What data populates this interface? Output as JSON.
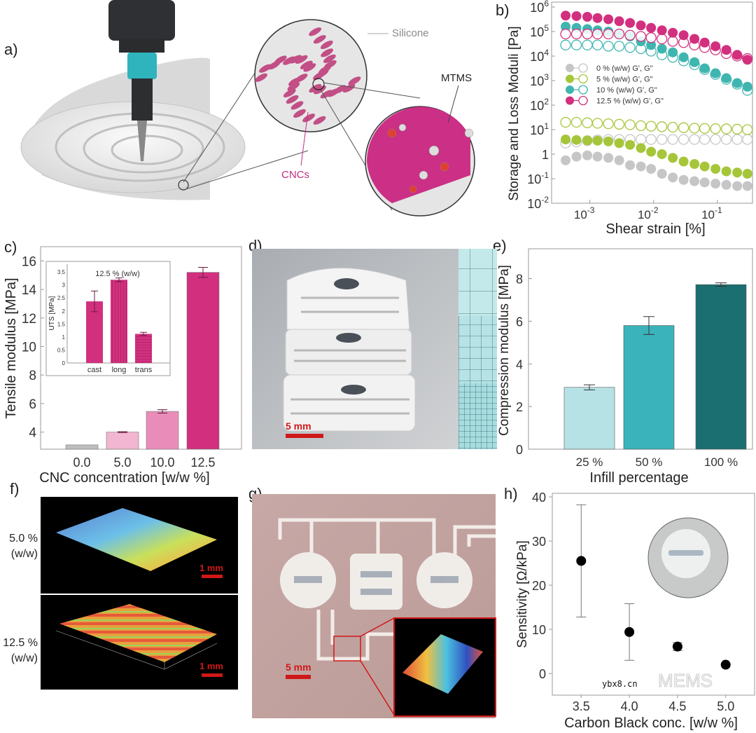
{
  "panel_labels": {
    "a": "a)",
    "b": "b)",
    "c": "c)",
    "d": "d)",
    "e": "e)",
    "f": "f)",
    "g": "g)",
    "h": "h)"
  },
  "panel_a": {
    "silicone": "Silicone",
    "mtms": "MTMS",
    "cncs": "CNCs"
  },
  "panel_d": {
    "scale_bar": "5 mm"
  },
  "panel_f": {
    "top_label_1": "5.0 %",
    "top_label_2": "(w/w)",
    "bottom_label_1": "12.5 %",
    "bottom_label_2": "(w/w)",
    "scale_bar_top": "1 mm",
    "scale_bar_bottom": "1 mm"
  },
  "panel_g": {
    "scale_bar": "5 mm"
  },
  "watermark": {
    "brand": "MEMS",
    "site": "ybx8.cn"
  },
  "colors": {
    "pink": "#d2307f",
    "teal": "#3fb5b0",
    "green": "#a6c63a",
    "gray": "#c6c6c6"
  },
  "chart_data": [
    {
      "id": "b",
      "type": "scatter",
      "y_scale": "log",
      "x_scale": "log",
      "xlabel": "Shear strain [%]",
      "ylabel": "Storage and Loss Moduli [Pa]",
      "x_ticks": [
        {
          "base": "10",
          "exp": "-3",
          "log": -3
        },
        {
          "base": "10",
          "exp": "-2",
          "log": -2
        },
        {
          "base": "10",
          "exp": "-1",
          "log": -1
        }
      ],
      "y_ticks": [
        {
          "base": "10",
          "exp": "6",
          "log": 6
        },
        {
          "base": "10",
          "exp": "5",
          "log": 5
        },
        {
          "base": "10",
          "exp": "4",
          "log": 4
        },
        {
          "base": "10",
          "exp": "3",
          "log": 3
        },
        {
          "base": "10",
          "exp": "2",
          "log": 2
        },
        {
          "base": "10",
          "exp": "1",
          "log": 1
        },
        {
          "base": "1",
          "exp": "",
          "log": 0
        },
        {
          "base": "10",
          "exp": "-1",
          "log": -1
        },
        {
          "base": "10",
          "exp": "-2",
          "log": -2
        }
      ],
      "xlim_log10": [
        -3.6,
        -0.45
      ],
      "ylim_log10": [
        -2,
        6.2
      ],
      "x_log10": [
        -3.38,
        -3.21,
        -3.04,
        -2.88,
        -2.71,
        -2.54,
        -2.37,
        -2.2,
        -2.04,
        -1.87,
        -1.7,
        -1.53,
        -1.36,
        -1.2,
        -1.03,
        -0.86,
        -0.69,
        -0.53
      ],
      "legend_position": "center-left",
      "series": [
        {
          "name": "12.5 % (w/w) G', G\"",
          "color": "#d2307f",
          "G_prime_log10": [
            5.65,
            5.63,
            5.6,
            5.55,
            5.5,
            5.42,
            5.35,
            5.25,
            5.15,
            5.05,
            4.95,
            4.85,
            4.7,
            4.55,
            4.4,
            4.25,
            4.05,
            3.85
          ],
          "G_double_prime_log10": [
            4.9,
            4.9,
            4.9,
            4.9,
            4.9,
            4.9,
            4.85,
            4.8,
            4.75,
            4.7,
            4.6,
            4.55,
            4.45,
            4.35,
            4.25,
            4.1,
            4.0,
            3.9
          ]
        },
        {
          "name": "10 % (w/w) G', G\"",
          "color": "#3fb5b0",
          "G_prime_log10": [
            5.2,
            5.15,
            5.1,
            5.05,
            5.0,
            4.9,
            4.8,
            4.6,
            4.45,
            4.3,
            4.15,
            3.95,
            3.75,
            3.5,
            3.3,
            3.1,
            2.9,
            2.75
          ],
          "G_double_prime_log10": [
            4.45,
            4.45,
            4.45,
            4.45,
            4.4,
            4.4,
            4.35,
            4.3,
            4.2,
            4.05,
            3.95,
            3.8,
            3.65,
            3.45,
            3.25,
            3.05,
            2.85,
            2.6
          ]
        },
        {
          "name": "5 % (w/w) G', G\"",
          "color": "#a6c63a",
          "G_prime_log10": [
            0.6,
            0.58,
            0.56,
            0.55,
            0.52,
            0.45,
            0.38,
            0.25,
            0.1,
            0.0,
            -0.15,
            -0.3,
            -0.4,
            -0.5,
            -0.6,
            -0.7,
            -0.75,
            -0.8
          ],
          "G_double_prime_log10": [
            1.3,
            1.3,
            1.28,
            1.26,
            1.24,
            1.22,
            1.2,
            1.16,
            1.14,
            1.12,
            1.1,
            1.08,
            1.06,
            1.05,
            1.04,
            1.03,
            1.02,
            1.0
          ]
        },
        {
          "name": "0 % (w/w) G', G\"",
          "color": "#c6c6c6",
          "G_prime_log10": [
            -0.25,
            -0.1,
            -0.05,
            -0.1,
            -0.15,
            -0.25,
            -0.45,
            -0.5,
            -0.6,
            -0.8,
            -0.95,
            -1.05,
            -1.1,
            -1.15,
            -1.2,
            -1.25,
            -1.3,
            -1.3
          ],
          "G_double_prime_log10": [
            0.45,
            0.5,
            0.55,
            0.58,
            0.6,
            0.6,
            0.6,
            0.6,
            0.6,
            0.6,
            0.6,
            0.6,
            0.6,
            0.6,
            0.6,
            0.6,
            0.6,
            0.6
          ]
        }
      ]
    },
    {
      "id": "c",
      "type": "bar",
      "xlabel": "CNC concentration [w/w %]",
      "ylabel": "Tensile modulus [MPa]",
      "categories": [
        "0.0",
        "5.0",
        "10.0",
        "12.5"
      ],
      "values": [
        3.1,
        4.0,
        5.45,
        15.2
      ],
      "errors": [
        0,
        0.03,
        0.12,
        0.35
      ],
      "colors": [
        "#bdbdbd",
        "#f2b6d2",
        "#ea8cba",
        "#d2307f"
      ],
      "ylim": [
        2.8,
        17
      ],
      "y_ticks": [
        "4",
        "6",
        "8",
        "10",
        "12",
        "14",
        "16"
      ],
      "inset": {
        "type": "bar",
        "title": "12.5 % (w/w)",
        "ylabel": "UTS [MPa]",
        "categories": [
          "cast",
          "long",
          "trans"
        ],
        "values": [
          2.37,
          3.2,
          1.12
        ],
        "errors": [
          0.4,
          0.07,
          0.06
        ],
        "patterns": [
          "solid",
          "vertical",
          "horizontal"
        ],
        "ylim": [
          0,
          3.8
        ],
        "y_ticks": [
          "0",
          "0.5",
          "1",
          "1.5",
          "2",
          "2.5",
          "3",
          "3.5"
        ]
      }
    },
    {
      "id": "e",
      "type": "bar",
      "xlabel": "Infill percentage",
      "ylabel": "Compression modulus [MPa]",
      "categories": [
        "25 %",
        "50 %",
        "100 %"
      ],
      "values": [
        2.9,
        5.8,
        7.72
      ],
      "errors": [
        0.12,
        0.42,
        0.08
      ],
      "colors": [
        "#b6e2e6",
        "#3bb3bb",
        "#1b6f70"
      ],
      "ylim": [
        0,
        9.4
      ],
      "y_ticks": [
        "0",
        "2",
        "4",
        "6",
        "8"
      ]
    },
    {
      "id": "h",
      "type": "scatter",
      "xlabel": "Carbon Black conc. [w/w %]",
      "ylabel": "Sensitivity [Ω/kPa]",
      "x": [
        3.5,
        4.0,
        4.5,
        5.0
      ],
      "y": [
        25.5,
        9.4,
        6.1,
        2.0
      ],
      "err_low": [
        12.8,
        3.0,
        5.2,
        2.0
      ],
      "err_high": [
        38.2,
        15.8,
        7.0,
        2.0
      ],
      "xlim": [
        3.2,
        5.3
      ],
      "ylim": [
        -4.9,
        40.8
      ],
      "x_ticks": [
        "3.5",
        "4.0",
        "4.5",
        "5.0"
      ],
      "y_ticks": [
        "0",
        "10",
        "20",
        "30",
        "40"
      ]
    }
  ]
}
